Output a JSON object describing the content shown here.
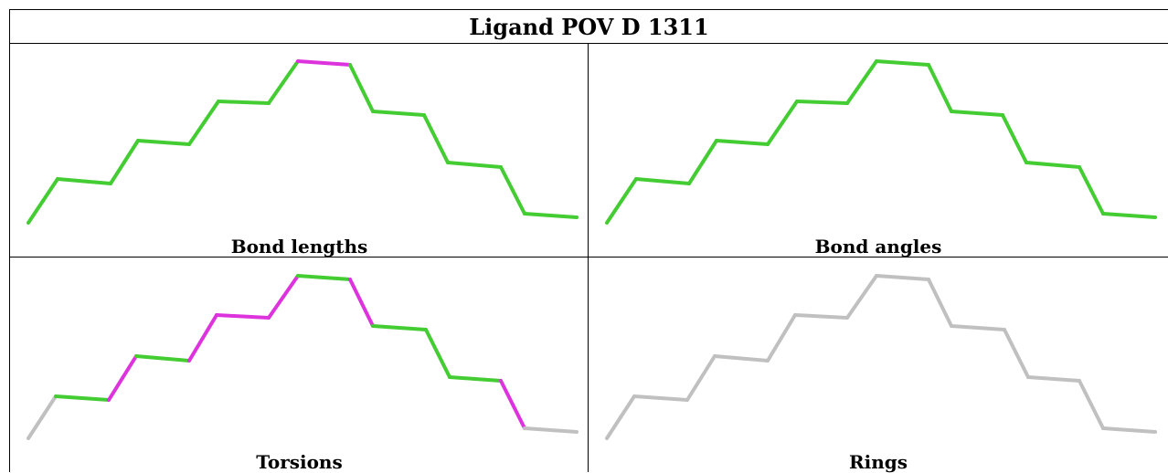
{
  "title": "Ligand POV D 1311",
  "colors": {
    "pass": "#44cc33",
    "outlier": "#dd33dd",
    "neutral": "#c0c0c0"
  },
  "panels": [
    {
      "caption": "Bond lengths",
      "bond_colors": [
        "pass",
        "pass",
        "pass",
        "pass",
        "pass",
        "pass",
        "pass",
        "pass",
        "pass",
        "outlier",
        "pass",
        "pass",
        "pass",
        "pass",
        "pass",
        "pass",
        "pass",
        "pass",
        "pass"
      ]
    },
    {
      "caption": "Bond angles",
      "bond_colors": [
        "pass",
        "pass",
        "pass",
        "pass",
        "pass",
        "pass",
        "pass",
        "pass",
        "pass",
        "pass",
        "pass",
        "pass",
        "pass",
        "pass",
        "pass",
        "pass",
        "pass",
        "pass",
        "pass"
      ]
    },
    {
      "caption": "Torsions",
      "bond_colors": [
        "neutral",
        "pass",
        "outlier",
        "pass",
        "outlier",
        "outlier",
        "outlier",
        "pass",
        "pass",
        "pass",
        "outlier",
        "pass",
        "pass",
        "pass",
        "pass",
        "pass",
        "outlier",
        "neutral"
      ]
    },
    {
      "caption": "Rings",
      "bond_colors": [
        "neutral",
        "neutral",
        "neutral",
        "neutral",
        "neutral",
        "neutral",
        "neutral",
        "neutral",
        "neutral",
        "neutral",
        "neutral",
        "neutral",
        "neutral",
        "neutral",
        "neutral",
        "neutral",
        "neutral",
        "neutral"
      ]
    }
  ]
}
